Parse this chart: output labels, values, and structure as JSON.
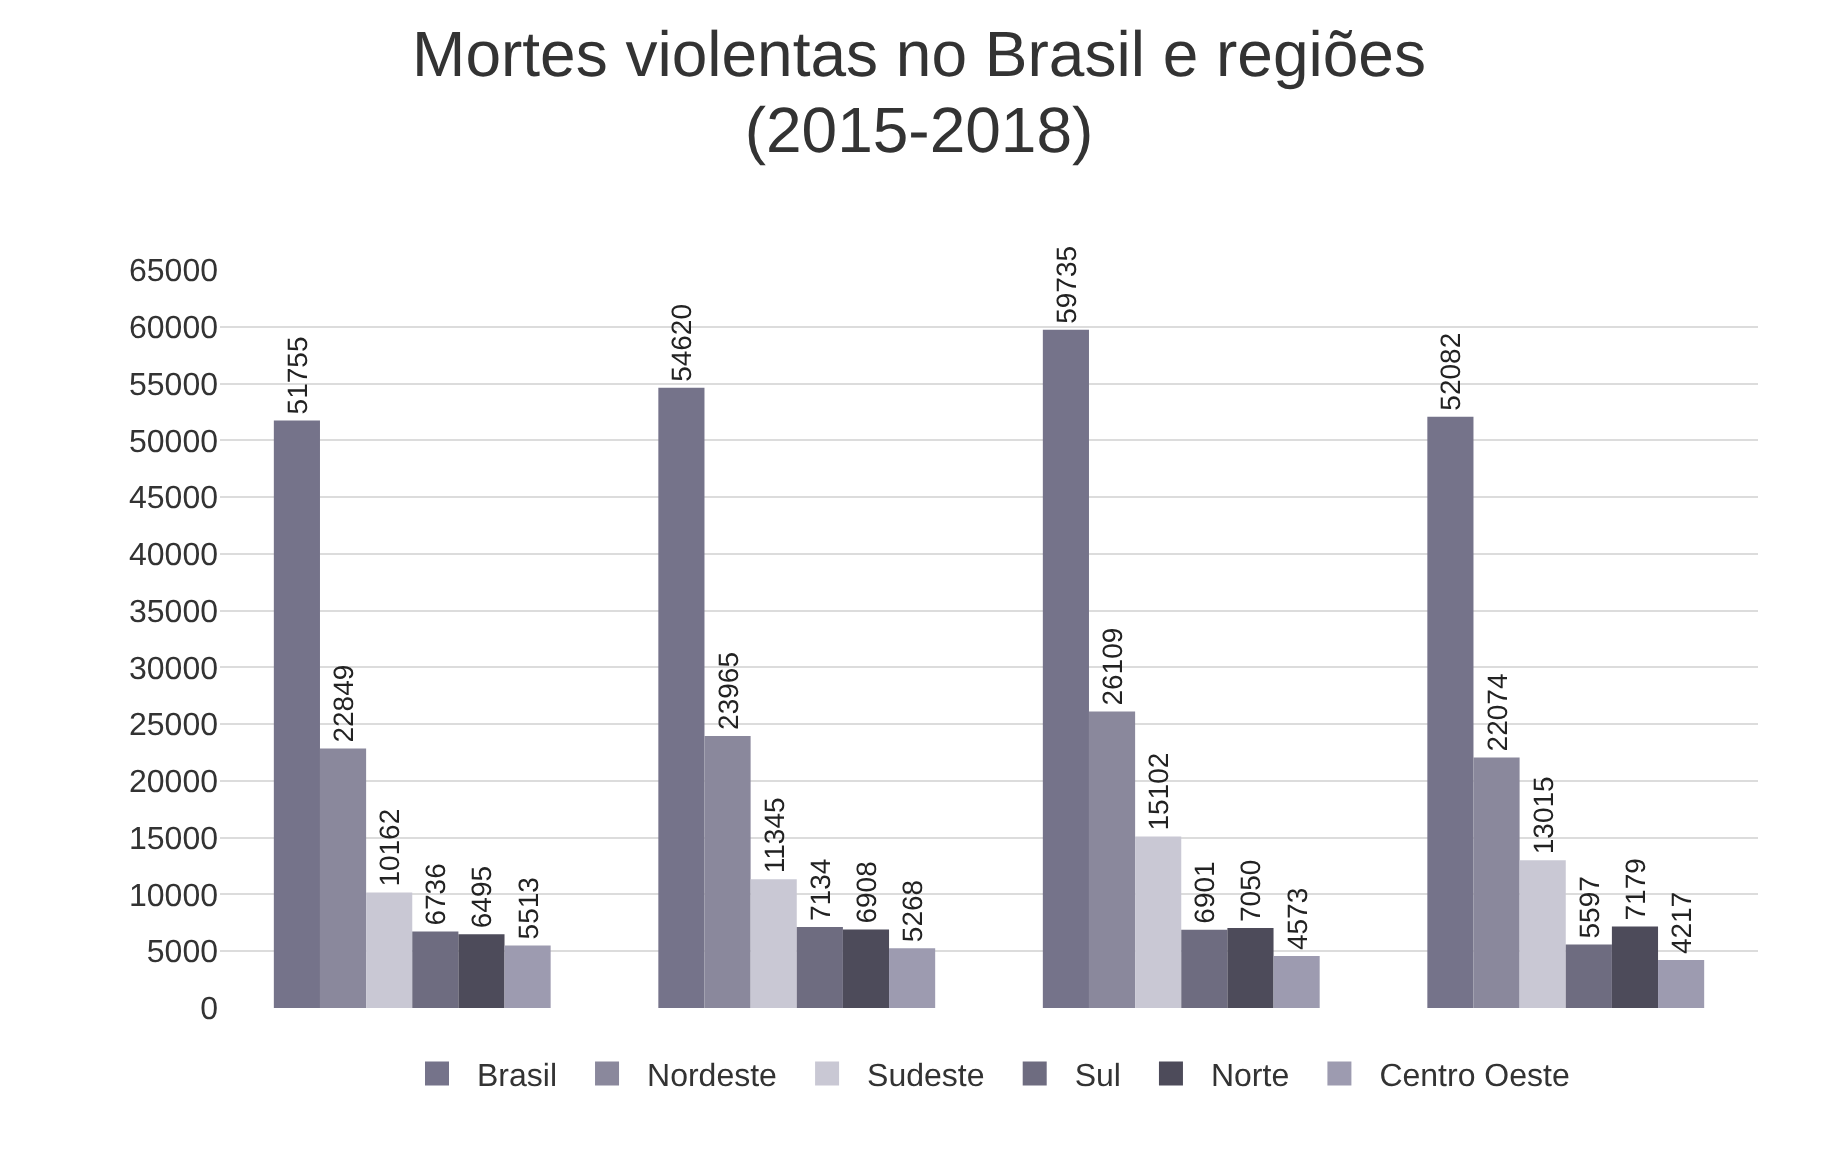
{
  "chart_data": {
    "type": "bar",
    "title": "Mortes violentas no Brasil e regiões (2015-2018)",
    "categories": [
      null,
      null,
      null,
      null
    ],
    "series": [
      {
        "name": "Brasil",
        "color": "#75738a",
        "values": [
          51755,
          54620,
          59735,
          52082
        ]
      },
      {
        "name": "Nordeste",
        "color": "#8a889c",
        "values": [
          22849,
          23965,
          26109,
          22074
        ]
      },
      {
        "name": "Sudeste",
        "color": "#c9c8d4",
        "values": [
          10162,
          11345,
          15102,
          13015
        ]
      },
      {
        "name": "Sul",
        "color": "#6e6c80",
        "values": [
          6736,
          7134,
          6901,
          5597
        ]
      },
      {
        "name": "Norte",
        "color": "#4d4b5a",
        "values": [
          6495,
          6908,
          7050,
          7179
        ]
      },
      {
        "name": "Centro Oeste",
        "color": "#9d9bb0",
        "values": [
          5513,
          5268,
          4573,
          4217
        ]
      }
    ],
    "ylim": [
      0,
      65000
    ],
    "yticks": [
      0,
      5000,
      10000,
      15000,
      20000,
      25000,
      30000,
      35000,
      40000,
      45000,
      50000,
      55000,
      60000,
      65000
    ],
    "grid": "y",
    "legend": "bottom",
    "data_labels": true
  }
}
